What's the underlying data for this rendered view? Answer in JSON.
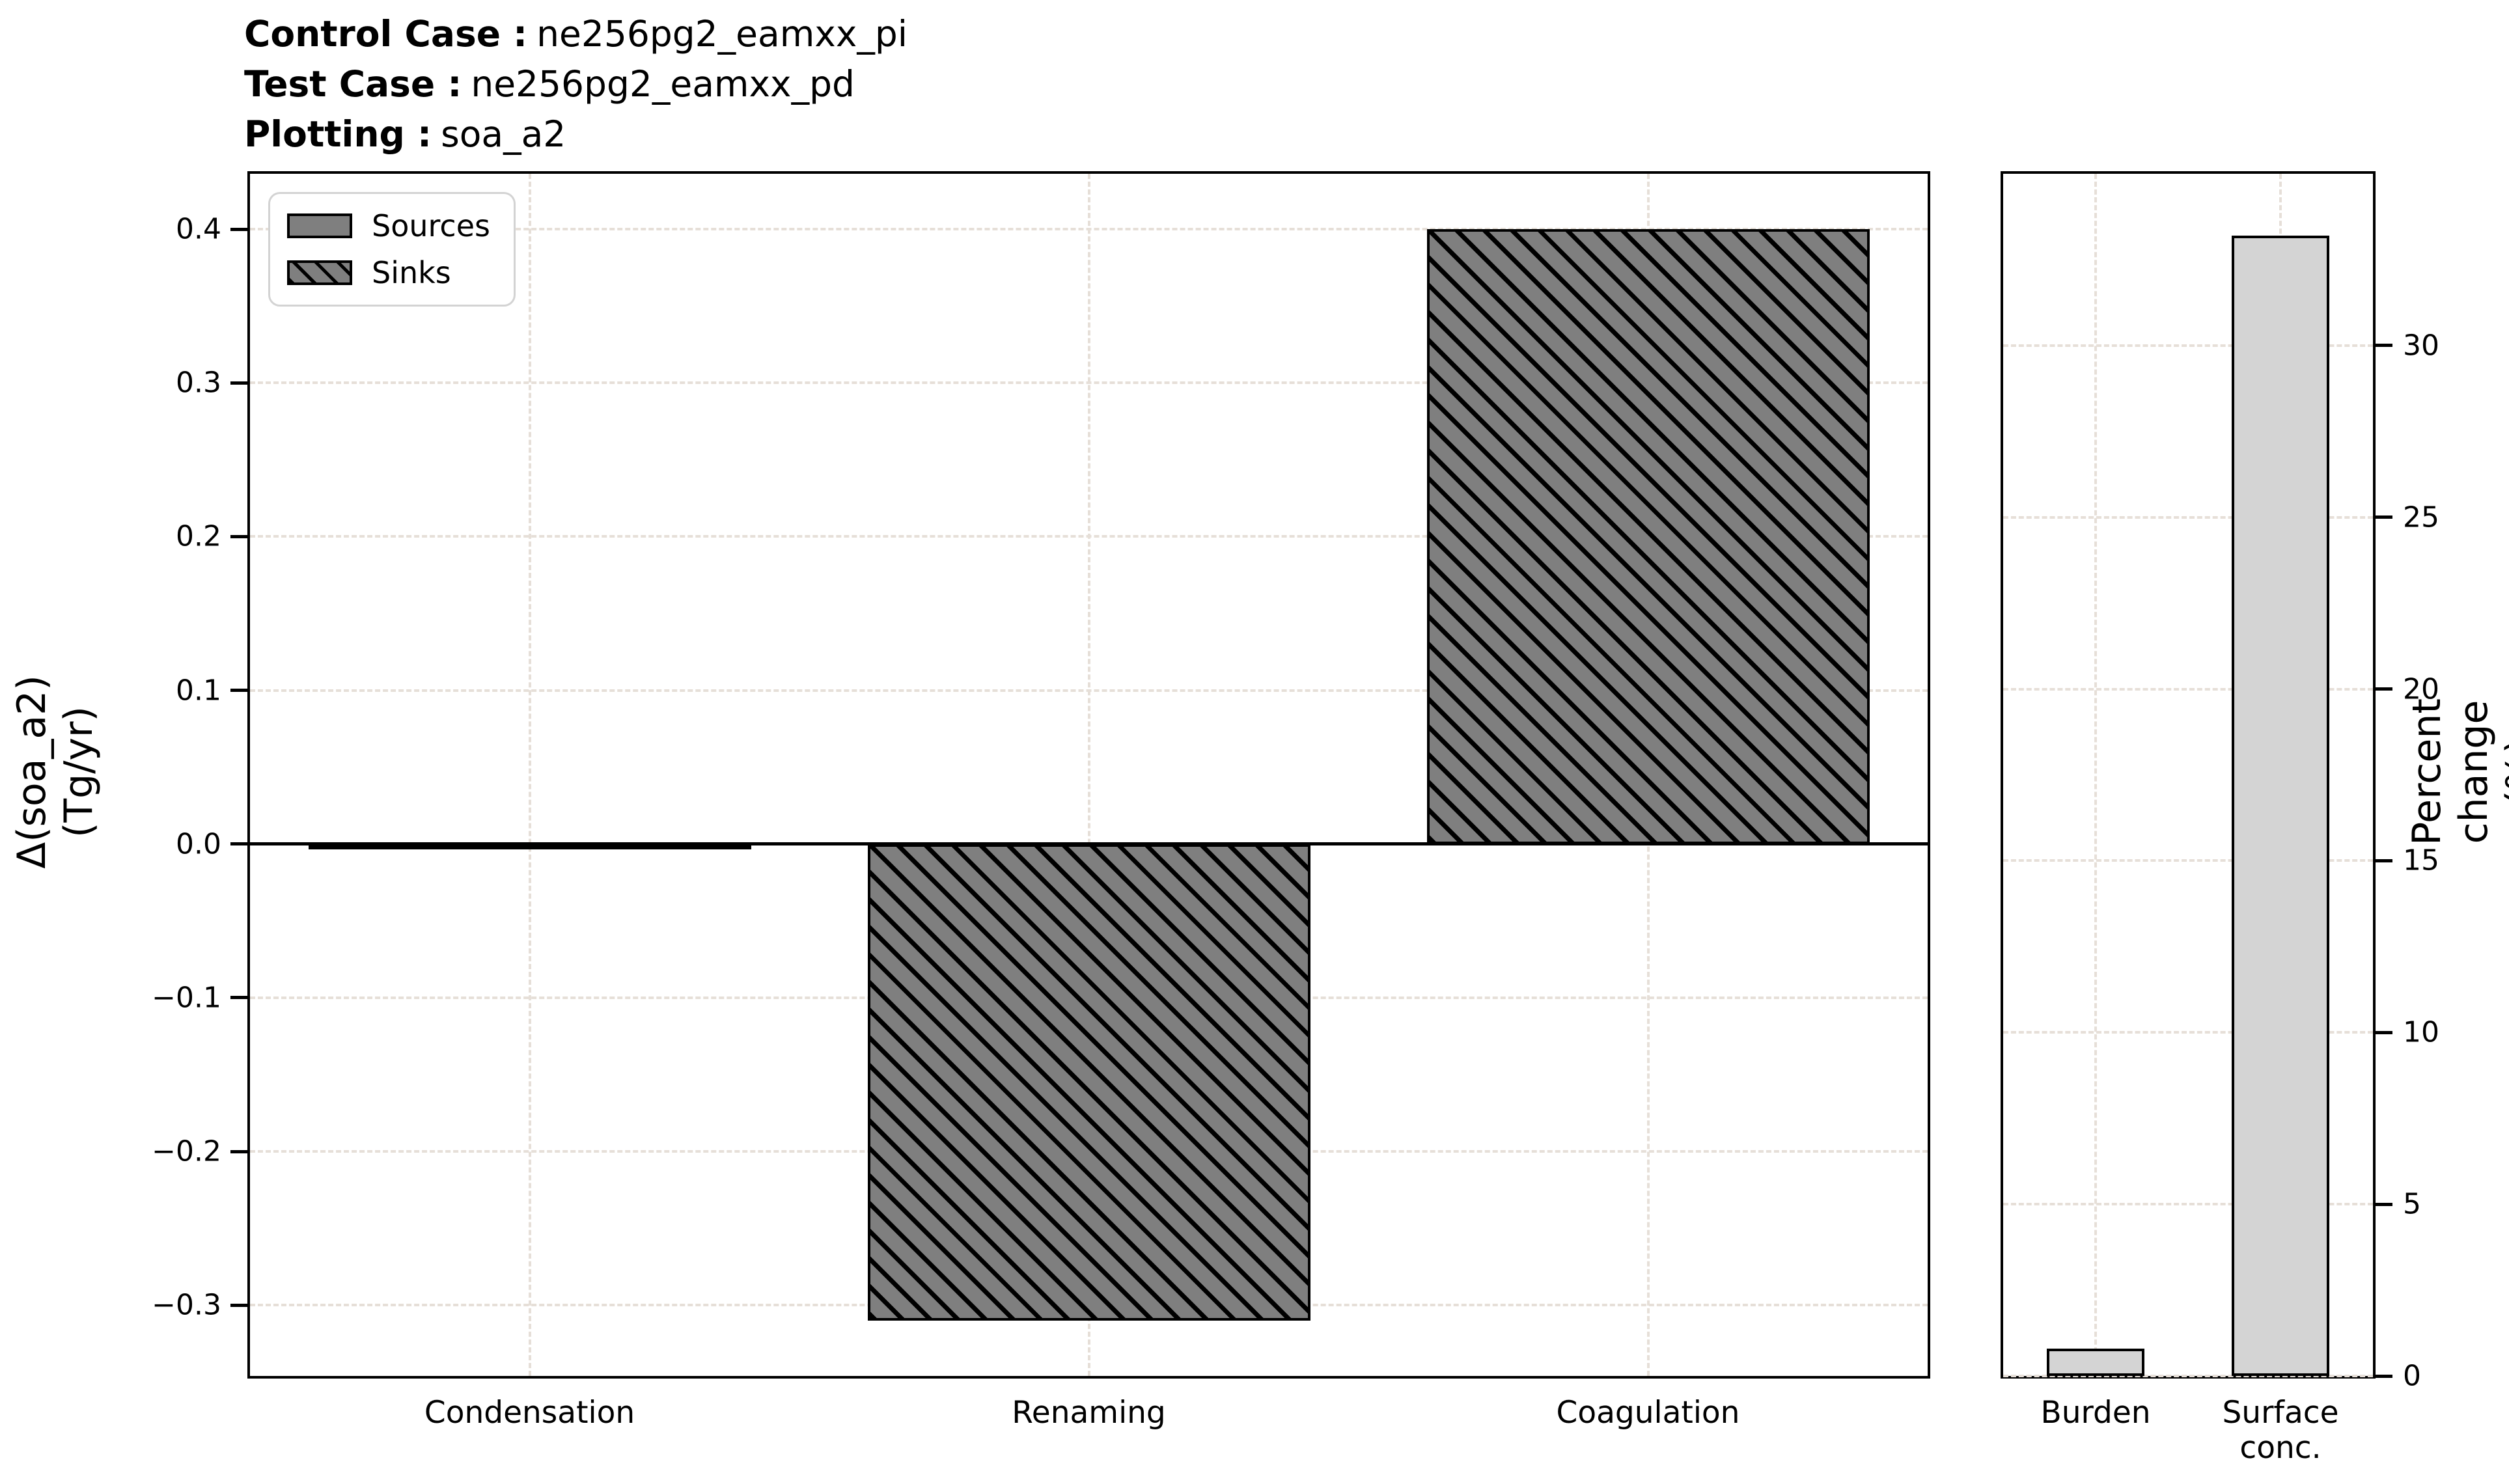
{
  "header": {
    "lines": [
      {
        "label": "Control Case :",
        "value": "ne256pg2_eamxx_pi"
      },
      {
        "label": "Test Case :",
        "value": "ne256pg2_eamxx_pd"
      },
      {
        "label": "Plotting :",
        "value": "soa_a2"
      }
    ]
  },
  "colors": {
    "bar_gray": "#7f7f7f",
    "bar_lightgray": "#d4d4d4",
    "edge": "#000000",
    "grid": "#e6dfd8",
    "legend_border": "#d3d3d3"
  },
  "chart_data": [
    {
      "type": "bar",
      "title": "",
      "xlabel": "",
      "ylabel": "Δ(soa_a2)\n(Tg/yr)",
      "categories": [
        "Condensation",
        "Renaming",
        "Coagulation"
      ],
      "bars": [
        {
          "category": "Condensation",
          "value": -0.003,
          "group": "Sources",
          "hatched": false
        },
        {
          "category": "Renaming",
          "value": -0.31,
          "group": "Sinks",
          "hatched": true
        },
        {
          "category": "Coagulation",
          "value": 0.4,
          "group": "Sinks",
          "hatched": true
        }
      ],
      "fill": "#7f7f7f",
      "ylim": [
        -0.346,
        0.436
      ],
      "yticks": [
        {
          "v": 0.4,
          "label": "0.4"
        },
        {
          "v": 0.3,
          "label": "0.3"
        },
        {
          "v": 0.2,
          "label": "0.2"
        },
        {
          "v": 0.1,
          "label": "0.1"
        },
        {
          "v": 0.0,
          "label": "0.0"
        },
        {
          "v": -0.1,
          "label": "−0.1"
        },
        {
          "v": -0.2,
          "label": "−0.2"
        },
        {
          "v": -0.3,
          "label": "−0.3"
        }
      ],
      "ticks_side": "left",
      "zero_line": true,
      "grid": "dashed",
      "legend": [
        {
          "label": "Sources",
          "hatched": false
        },
        {
          "label": "Sinks",
          "hatched": true
        }
      ],
      "legend_position": "upper left"
    },
    {
      "type": "bar",
      "title": "",
      "xlabel": "",
      "ylabel": "Percent change (%)",
      "categories": [
        "Burden",
        "Surface\nconc."
      ],
      "bars": [
        {
          "category": "Burden",
          "value": 0.8,
          "group": "Percent change",
          "hatched": false
        },
        {
          "category": "Surface\nconc.",
          "value": 33.2,
          "group": "Percent change",
          "hatched": false
        }
      ],
      "fill": "#d4d4d4",
      "ylim": [
        0,
        35
      ],
      "yticks": [
        {
          "v": 0,
          "label": "0"
        },
        {
          "v": 5,
          "label": "5"
        },
        {
          "v": 10,
          "label": "10"
        },
        {
          "v": 15,
          "label": "15"
        },
        {
          "v": 20,
          "label": "20"
        },
        {
          "v": 25,
          "label": "25"
        },
        {
          "v": 30,
          "label": "30"
        }
      ],
      "ticks_side": "right",
      "zero_line": false,
      "grid": "dashed"
    }
  ]
}
